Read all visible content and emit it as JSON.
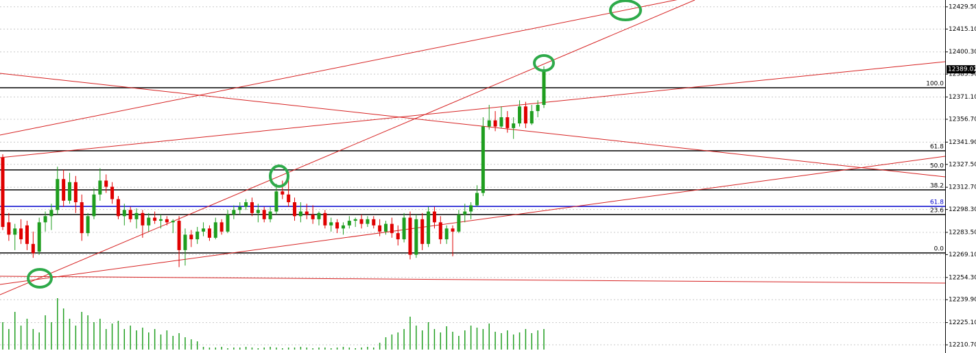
{
  "chart_data": {
    "type": "candlestick",
    "color_up": "#1f9e1f",
    "color_down": "#e00000",
    "volume_color": "#1f9e1f",
    "grid": true,
    "ylim": [
      12205.4,
      12433.9
    ],
    "yticks": [
      {
        "value": 12429.5,
        "label": "12429.50"
      },
      {
        "value": 12415.1,
        "label": "12415.10"
      },
      {
        "value": 12400.3,
        "label": "12400.30"
      },
      {
        "value": 12385.9,
        "label": "12385.90"
      },
      {
        "value": 12371.1,
        "label": "12371.10"
      },
      {
        "value": 12356.7,
        "label": "12356.70"
      },
      {
        "value": 12341.9,
        "label": "12341.90"
      },
      {
        "value": 12327.5,
        "label": "12327.50"
      },
      {
        "value": 12312.7,
        "label": "12312.70"
      },
      {
        "value": 12298.3,
        "label": "12298.30"
      },
      {
        "value": 12283.5,
        "label": "12283.50"
      },
      {
        "value": 12269.1,
        "label": "12269.10"
      },
      {
        "value": 12254.3,
        "label": "12254.30"
      },
      {
        "value": 12239.9,
        "label": "12239.90"
      },
      {
        "value": 12225.1,
        "label": "12225.10"
      },
      {
        "value": 12210.7,
        "label": "12210.70"
      }
    ],
    "last_price": {
      "value": 12389.02,
      "label": "12389.02"
    },
    "levels": [
      {
        "label": "100.0",
        "value": 12377.1,
        "color": "#000000"
      },
      {
        "label": "61.8",
        "value": 12336.3,
        "color": "#000000"
      },
      {
        "label": "50.0",
        "value": 12323.9,
        "color": "#000000"
      },
      {
        "label": "38.2",
        "value": 12311.0,
        "color": "#000000"
      },
      {
        "label": "61.8",
        "value": 12300.3,
        "color": "#0000cc"
      },
      {
        "label": "23.6",
        "value": 12295.0,
        "color": "#000000"
      },
      {
        "label": "0.0",
        "value": 12270.2,
        "color": "#000000"
      }
    ],
    "open": [
      12332,
      12290,
      12282,
      12286,
      12288,
      12276,
      12271,
      12290,
      12294,
      12298,
      12318,
      12304,
      12316,
      12303,
      12283,
      12294,
      12308,
      12317,
      12313,
      12305,
      12294,
      12298,
      12292,
      12296,
      12288,
      12293,
      12291,
      12292,
      12290,
      12291,
      12272,
      12282,
      12279,
      12284,
      12286,
      12280,
      12290,
      12284,
      12295,
      12298,
      12300,
      12303,
      12296,
      12298,
      12292,
      12297,
      12310,
      12308,
      12303,
      12294,
      12297,
      12295,
      12292,
      12296,
      12288,
      12290,
      12286,
      12288,
      12291,
      12292,
      12289,
      12292,
      12288,
      12284,
      12289,
      12283,
      12279,
      12293,
      12269,
      12292,
      12276,
      12297,
      12290,
      12279,
      12286,
      12284,
      12295,
      12297,
      12301,
      12309,
      12352,
      12356,
      12352,
      12358,
      12351,
      12354,
      12365,
      12354,
      12362,
      12366
    ],
    "high": [
      12334,
      12296,
      12289,
      12292,
      12291,
      12284,
      12293,
      12297,
      12302,
      12326,
      12324,
      12322,
      12320,
      12308,
      12296,
      12312,
      12325,
      12321,
      12316,
      12307,
      12302,
      12300,
      12299,
      12298,
      12296,
      12297,
      12295,
      12294,
      12292,
      12294,
      12286,
      12285,
      12287,
      12290,
      12288,
      12293,
      12292,
      12298,
      12301,
      12303,
      12305,
      12306,
      12302,
      12300,
      12300,
      12315,
      12317,
      12320,
      12306,
      12303,
      12302,
      12301,
      12297,
      12298,
      12293,
      12292,
      12290,
      12294,
      12293,
      12295,
      12294,
      12294,
      12292,
      12291,
      12293,
      12288,
      12296,
      12297,
      12295,
      12296,
      12300,
      12300,
      12294,
      12288,
      12288,
      12298,
      12302,
      12303,
      12314,
      12358,
      12366,
      12362,
      12365,
      12362,
      12358,
      12369,
      12368,
      12366,
      12369,
      12391
    ],
    "low": [
      12285,
      12278,
      12272,
      12276,
      12272,
      12267,
      12269,
      12284,
      12285,
      12295,
      12300,
      12302,
      12296,
      12278,
      12281,
      12292,
      12304,
      12309,
      12302,
      12292,
      12288,
      12290,
      12286,
      12280,
      12284,
      12289,
      12286,
      12288,
      12283,
      12261,
      12262,
      12274,
      12276,
      12281,
      12278,
      12279,
      12282,
      12283,
      12292,
      12295,
      12298,
      12294,
      12290,
      12290,
      12290,
      12295,
      12305,
      12300,
      12291,
      12290,
      12292,
      12289,
      12288,
      12286,
      12284,
      12283,
      12282,
      12286,
      12287,
      12286,
      12287,
      12286,
      12281,
      12282,
      12280,
      12275,
      12277,
      12266,
      12267,
      12272,
      12274,
      12286,
      12276,
      12276,
      12268,
      12283,
      12290,
      12292,
      12300,
      12307,
      12350,
      12349,
      12351,
      12348,
      12344,
      12352,
      12351,
      12353,
      12358,
      12364
    ],
    "close": [
      12287,
      12282,
      12286,
      12279,
      12276,
      12270,
      12290,
      12294,
      12298,
      12318,
      12304,
      12316,
      12303,
      12283,
      12294,
      12308,
      12317,
      12313,
      12305,
      12294,
      12298,
      12292,
      12296,
      12288,
      12293,
      12291,
      12292,
      12290,
      12291,
      12272,
      12282,
      12279,
      12284,
      12286,
      12280,
      12290,
      12284,
      12295,
      12298,
      12300,
      12303,
      12296,
      12298,
      12292,
      12297,
      12310,
      12308,
      12303,
      12294,
      12297,
      12295,
      12292,
      12296,
      12288,
      12290,
      12286,
      12288,
      12291,
      12292,
      12289,
      12292,
      12288,
      12284,
      12289,
      12283,
      12279,
      12293,
      12269,
      12292,
      12276,
      12297,
      12290,
      12279,
      12286,
      12284,
      12295,
      12297,
      12301,
      12309,
      12352,
      12356,
      12352,
      12358,
      12351,
      12354,
      12365,
      12354,
      12362,
      12366,
      12389.02
    ],
    "volume": [
      40,
      30,
      55,
      35,
      45,
      30,
      25,
      50,
      40,
      75,
      60,
      45,
      35,
      55,
      50,
      40,
      45,
      30,
      38,
      42,
      30,
      35,
      28,
      32,
      25,
      30,
      22,
      28,
      20,
      24,
      18,
      15,
      12,
      4,
      3,
      3,
      4,
      2,
      3,
      3,
      4,
      3,
      2,
      3,
      4,
      3,
      2,
      3,
      3,
      4,
      3,
      2,
      3,
      3,
      2,
      3,
      4,
      3,
      2,
      3,
      4,
      3,
      10,
      18,
      22,
      25,
      30,
      48,
      35,
      28,
      40,
      30,
      25,
      34,
      26,
      20,
      28,
      35,
      32,
      30,
      38,
      26,
      24,
      28,
      22,
      25,
      30,
      24,
      28,
      30
    ]
  }
}
